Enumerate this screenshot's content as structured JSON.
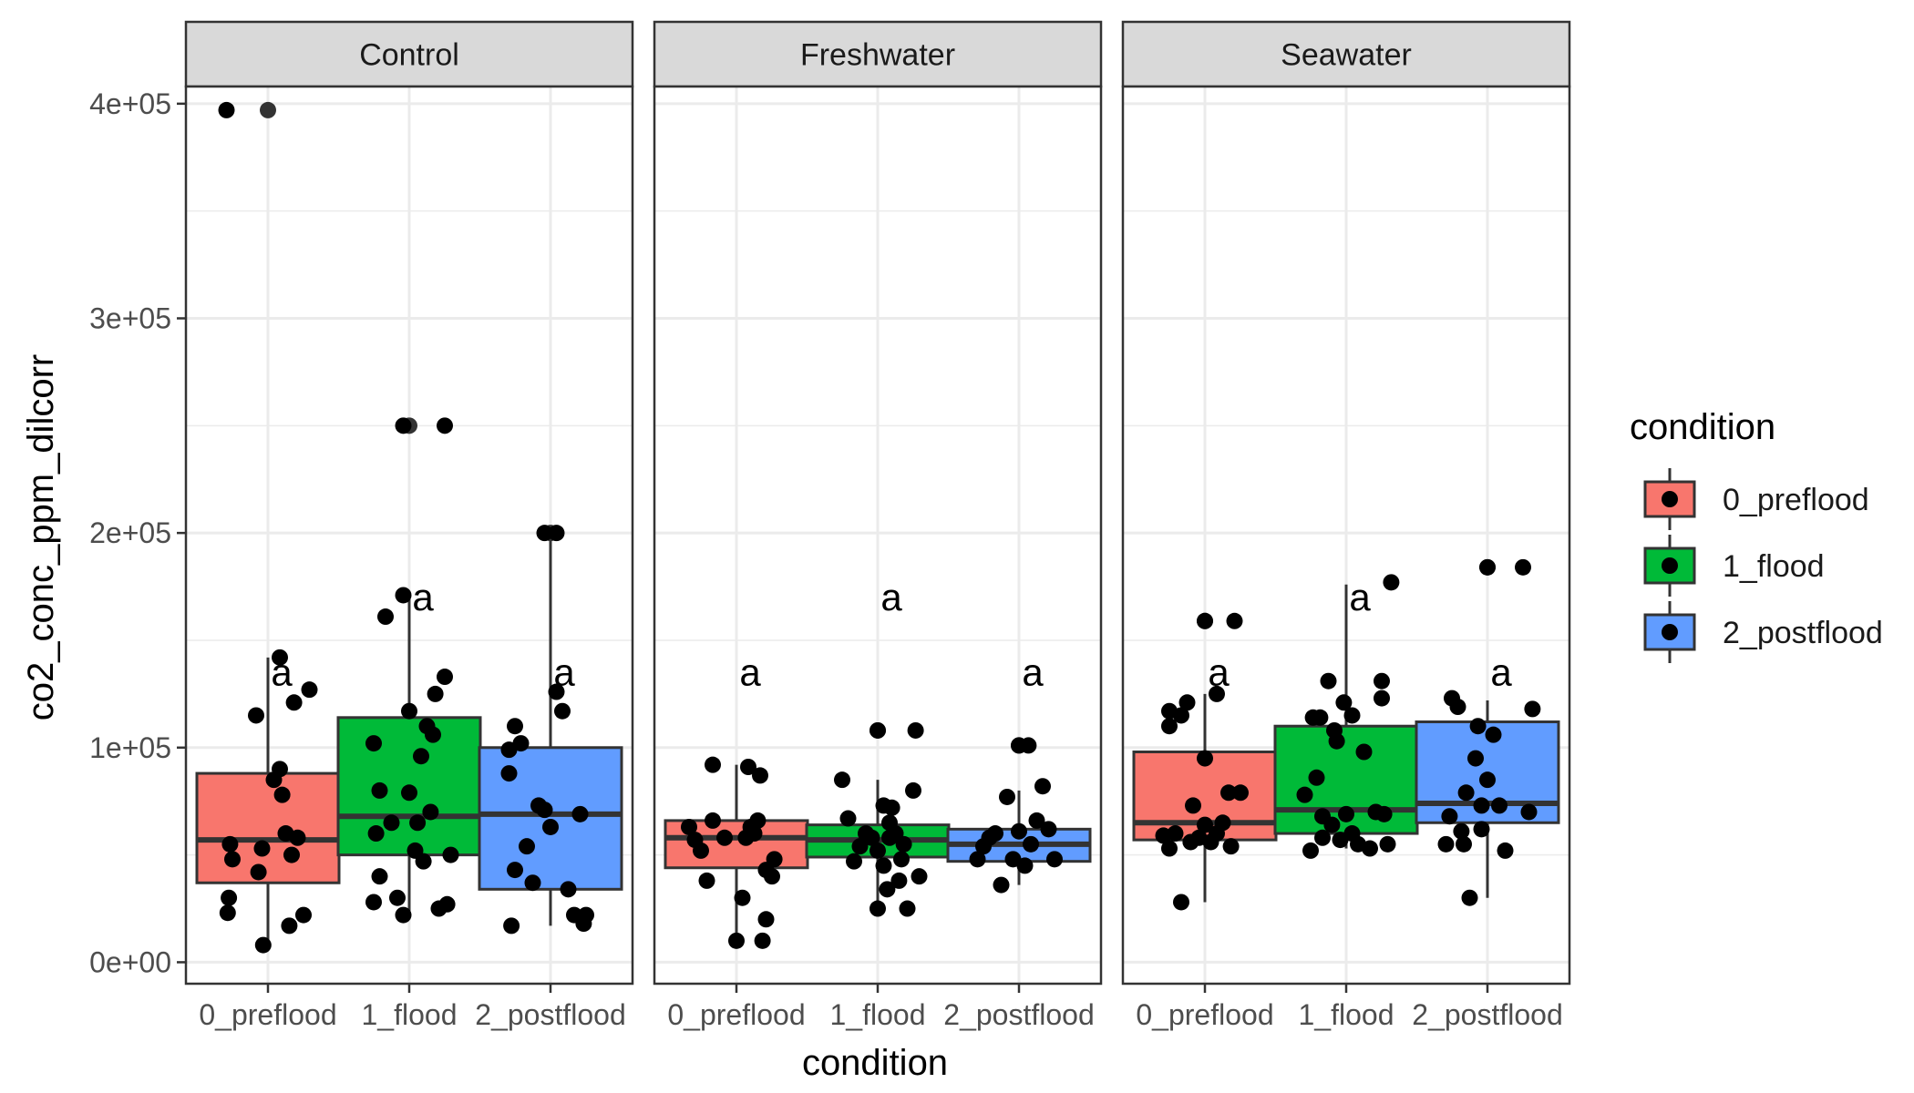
{
  "chart_data": {
    "type": "box",
    "title": "",
    "xlabel": "condition",
    "ylabel": "co2_conc_ppm_dilcorr",
    "ylim": [
      -10000,
      408000
    ],
    "y_ticks": [
      0,
      100000,
      200000,
      300000,
      400000
    ],
    "y_tick_labels": [
      "0e+00",
      "1e+05",
      "2e+05",
      "3e+05",
      "4e+05"
    ],
    "grid": true,
    "legend_position": "right",
    "legend": {
      "title": "condition",
      "entries": [
        "0_preflood",
        "1_flood",
        "2_postflood"
      ]
    },
    "colors": {
      "0_preflood": "#F8766D",
      "1_flood": "#00BA38",
      "2_postflood": "#619CFF"
    },
    "categories": [
      "0_preflood",
      "1_flood",
      "2_postflood"
    ],
    "panels": [
      {
        "name": "Control",
        "boxes": [
          {
            "category": "0_preflood",
            "q1": 37000,
            "median": 57000,
            "q3": 88000,
            "whisker_low": 8000,
            "whisker_high": 142000,
            "outliers": [
              397000
            ],
            "letter": "a",
            "letter_y": 135000,
            "points": [
              [
                -0.35,
                397000
              ],
              [
                -0.32,
                55000
              ],
              [
                -0.3,
                48000
              ],
              [
                -0.33,
                30000
              ],
              [
                -0.34,
                23000
              ],
              [
                -0.1,
                115000
              ],
              [
                -0.05,
                53000
              ],
              [
                -0.08,
                42000
              ],
              [
                0.05,
                85000
              ],
              [
                0.1,
                90000
              ],
              [
                0.12,
                78000
              ],
              [
                0.1,
                142000
              ],
              [
                0.15,
                60000
              ],
              [
                0.18,
                17000
              ],
              [
                0.2,
                50000
              ],
              [
                0.22,
                121000
              ],
              [
                0.25,
                58000
              ],
              [
                0.35,
                127000
              ],
              [
                -0.04,
                8000
              ],
              [
                0.3,
                22000
              ]
            ]
          },
          {
            "category": "1_flood",
            "q1": 50000,
            "median": 68000,
            "q3": 114000,
            "whisker_low": 20000,
            "whisker_high": 170000,
            "outliers": [
              250000
            ],
            "letter": "a",
            "letter_y": 170000,
            "points": [
              [
                -0.05,
                250000
              ],
              [
                0.3,
                250000
              ],
              [
                -0.3,
                102000
              ],
              [
                -0.25,
                80000
              ],
              [
                -0.28,
                60000
              ],
              [
                -0.3,
                28000
              ],
              [
                -0.25,
                40000
              ],
              [
                -0.2,
                161000
              ],
              [
                -0.05,
                171000
              ],
              [
                -0.15,
                65000
              ],
              [
                -0.1,
                30000
              ],
              [
                -0.05,
                22000
              ],
              [
                0.0,
                79000
              ],
              [
                0.0,
                117000
              ],
              [
                0.05,
                52000
              ],
              [
                0.07,
                65000
              ],
              [
                0.1,
                96000
              ],
              [
                0.12,
                47000
              ],
              [
                0.15,
                110000
              ],
              [
                0.18,
                70000
              ],
              [
                0.2,
                106000
              ],
              [
                0.22,
                125000
              ],
              [
                0.25,
                25000
              ],
              [
                0.3,
                133000
              ],
              [
                0.32,
                27000
              ],
              [
                0.35,
                50000
              ]
            ]
          },
          {
            "category": "2_postflood",
            "q1": 34000,
            "median": 69000,
            "q3": 100000,
            "whisker_low": 17000,
            "whisker_high": 200000,
            "outliers": [
              200000
            ],
            "letter": "a",
            "letter_y": 135000,
            "points": [
              [
                -0.05,
                200000
              ],
              [
                0.05,
                200000
              ],
              [
                -0.35,
                99000
              ],
              [
                -0.35,
                88000
              ],
              [
                -0.3,
                110000
              ],
              [
                -0.25,
                102000
              ],
              [
                -0.3,
                43000
              ],
              [
                -0.33,
                17000
              ],
              [
                -0.2,
                54000
              ],
              [
                -0.15,
                37000
              ],
              [
                -0.1,
                73000
              ],
              [
                -0.05,
                71000
              ],
              [
                0.0,
                63000
              ],
              [
                0.05,
                126000
              ],
              [
                0.1,
                117000
              ],
              [
                0.15,
                34000
              ],
              [
                0.2,
                22000
              ],
              [
                0.25,
                69000
              ],
              [
                0.28,
                18000
              ],
              [
                0.3,
                22000
              ]
            ]
          }
        ]
      },
      {
        "name": "Freshwater",
        "boxes": [
          {
            "category": "0_preflood",
            "q1": 44000,
            "median": 58000,
            "q3": 66000,
            "whisker_low": 10000,
            "whisker_high": 92000,
            "outliers": [],
            "letter": "a",
            "letter_y": 135000,
            "points": [
              [
                -0.4,
                63000
              ],
              [
                -0.35,
                57000
              ],
              [
                -0.3,
                52000
              ],
              [
                -0.25,
                38000
              ],
              [
                -0.2,
                92000
              ],
              [
                -0.2,
                66000
              ],
              [
                -0.1,
                58000
              ],
              [
                0.0,
                10000
              ],
              [
                0.05,
                30000
              ],
              [
                0.1,
                91000
              ],
              [
                0.12,
                63000
              ],
              [
                0.15,
                60000
              ],
              [
                0.18,
                66000
              ],
              [
                0.2,
                87000
              ],
              [
                0.25,
                43000
              ],
              [
                0.25,
                20000
              ],
              [
                0.3,
                40000
              ],
              [
                0.32,
                48000
              ],
              [
                0.22,
                10000
              ],
              [
                0.08,
                58000
              ]
            ]
          },
          {
            "category": "1_flood",
            "q1": 49000,
            "median": 57000,
            "q3": 64000,
            "whisker_low": 25000,
            "whisker_high": 85000,
            "outliers": [
              108000
            ],
            "letter": "a",
            "letter_y": 170000,
            "points": [
              [
                -0.3,
                85000
              ],
              [
                -0.25,
                67000
              ],
              [
                -0.2,
                47000
              ],
              [
                -0.15,
                54000
              ],
              [
                -0.1,
                60000
              ],
              [
                -0.05,
                58000
              ],
              [
                0.0,
                52000
              ],
              [
                0.0,
                108000
              ],
              [
                0.0,
                25000
              ],
              [
                0.05,
                73000
              ],
              [
                0.05,
                45000
              ],
              [
                0.08,
                34000
              ],
              [
                0.1,
                65000
              ],
              [
                0.1,
                58000
              ],
              [
                0.12,
                72000
              ],
              [
                0.15,
                60000
              ],
              [
                0.18,
                38000
              ],
              [
                0.2,
                48000
              ],
              [
                0.22,
                55000
              ],
              [
                0.25,
                25000
              ],
              [
                0.3,
                80000
              ],
              [
                0.32,
                108000
              ],
              [
                0.35,
                40000
              ]
            ]
          },
          {
            "category": "2_postflood",
            "q1": 47000,
            "median": 55000,
            "q3": 62000,
            "whisker_low": 36000,
            "whisker_high": 80000,
            "outliers": [
              101000
            ],
            "letter": "a",
            "letter_y": 135000,
            "points": [
              [
                -0.35,
                48000
              ],
              [
                -0.3,
                54000
              ],
              [
                -0.25,
                58000
              ],
              [
                -0.2,
                60000
              ],
              [
                -0.15,
                36000
              ],
              [
                -0.1,
                77000
              ],
              [
                -0.05,
                48000
              ],
              [
                0.0,
                61000
              ],
              [
                0.0,
                101000
              ],
              [
                0.05,
                45000
              ],
              [
                0.08,
                101000
              ],
              [
                0.1,
                55000
              ],
              [
                0.15,
                66000
              ],
              [
                0.2,
                82000
              ],
              [
                0.25,
                62000
              ],
              [
                0.3,
                48000
              ]
            ]
          }
        ]
      },
      {
        "name": "Seawater",
        "boxes": [
          {
            "category": "0_preflood",
            "q1": 57000,
            "median": 65000,
            "q3": 98000,
            "whisker_low": 28000,
            "whisker_high": 125000,
            "outliers": [
              159000
            ],
            "letter": "a",
            "letter_y": 135000,
            "points": [
              [
                0.0,
                159000
              ],
              [
                -0.2,
                28000
              ],
              [
                -0.3,
                117000
              ],
              [
                -0.3,
                110000
              ],
              [
                -0.35,
                59000
              ],
              [
                -0.3,
                53000
              ],
              [
                -0.25,
                60000
              ],
              [
                -0.2,
                115000
              ],
              [
                -0.15,
                121000
              ],
              [
                -0.12,
                56000
              ],
              [
                -0.1,
                73000
              ],
              [
                -0.05,
                58000
              ],
              [
                0.0,
                95000
              ],
              [
                0.0,
                64000
              ],
              [
                0.05,
                56000
              ],
              [
                0.1,
                60000
              ],
              [
                0.1,
                125000
              ],
              [
                0.15,
                65000
              ],
              [
                0.2,
                79000
              ],
              [
                0.22,
                54000
              ],
              [
                0.25,
                159000
              ],
              [
                0.3,
                79000
              ]
            ]
          },
          {
            "category": "1_flood",
            "q1": 60000,
            "median": 71000,
            "q3": 110000,
            "whisker_low": 53000,
            "whisker_high": 176000,
            "outliers": [],
            "letter": "a",
            "letter_y": 170000,
            "points": [
              [
                -0.35,
                78000
              ],
              [
                -0.3,
                52000
              ],
              [
                -0.28,
                114000
              ],
              [
                -0.25,
                86000
              ],
              [
                -0.22,
                114000
              ],
              [
                -0.2,
                58000
              ],
              [
                -0.2,
                68000
              ],
              [
                -0.15,
                131000
              ],
              [
                -0.12,
                64000
              ],
              [
                -0.1,
                108000
              ],
              [
                -0.08,
                103000
              ],
              [
                -0.05,
                57000
              ],
              [
                -0.02,
                121000
              ],
              [
                0.0,
                69000
              ],
              [
                0.05,
                115000
              ],
              [
                0.05,
                60000
              ],
              [
                0.1,
                55000
              ],
              [
                0.15,
                98000
              ],
              [
                0.2,
                53000
              ],
              [
                0.25,
                70000
              ],
              [
                0.3,
                131000
              ],
              [
                0.3,
                123000
              ],
              [
                0.32,
                69000
              ],
              [
                0.35,
                55000
              ],
              [
                0.38,
                177000
              ]
            ]
          },
          {
            "category": "2_postflood",
            "q1": 65000,
            "median": 74000,
            "q3": 112000,
            "whisker_low": 30000,
            "whisker_high": 122000,
            "outliers": [
              184000
            ],
            "letter": "a",
            "letter_y": 135000,
            "points": [
              [
                0.0,
                184000
              ],
              [
                -0.35,
                55000
              ],
              [
                -0.32,
                68000
              ],
              [
                -0.3,
                123000
              ],
              [
                -0.25,
                119000
              ],
              [
                -0.22,
                61000
              ],
              [
                -0.2,
                55000
              ],
              [
                -0.18,
                79000
              ],
              [
                -0.15,
                30000
              ],
              [
                -0.1,
                95000
              ],
              [
                -0.08,
                110000
              ],
              [
                -0.05,
                73000
              ],
              [
                0.0,
                85000
              ],
              [
                0.05,
                106000
              ],
              [
                0.1,
                73000
              ],
              [
                0.15,
                52000
              ],
              [
                0.3,
                184000
              ],
              [
                0.35,
                70000
              ],
              [
                0.38,
                118000
              ],
              [
                -0.05,
                62000
              ]
            ]
          }
        ]
      }
    ]
  }
}
